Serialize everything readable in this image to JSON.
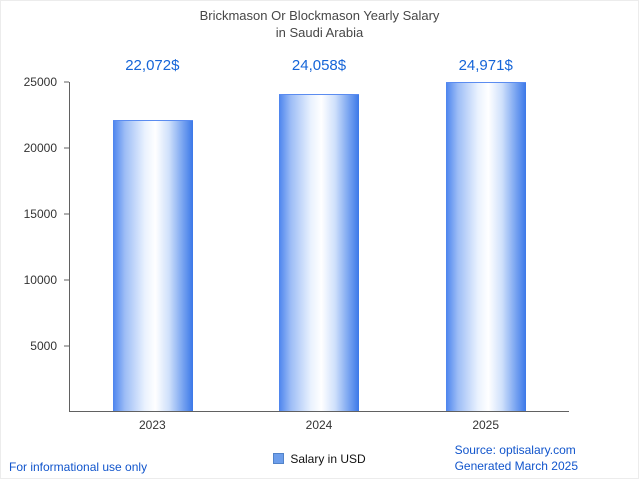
{
  "title": {
    "line1": "Brickmason Or Blockmason Yearly Salary",
    "line2": "in Saudi Arabia"
  },
  "chart_data": {
    "type": "bar",
    "title": "Brickmason Or Blockmason Yearly Salary in Saudi Arabia",
    "categories": [
      "2023",
      "2024",
      "2025"
    ],
    "values": [
      22072,
      24058,
      24971
    ],
    "value_labels": [
      "22,072$",
      "24,058$",
      "24,971$"
    ],
    "series_name": "Salary in USD",
    "xlabel": "",
    "ylabel": "",
    "ylim": [
      0,
      25000
    ],
    "yticks": [
      5000,
      10000,
      15000,
      20000,
      25000
    ],
    "grid": false,
    "legend_position": "bottom-center"
  },
  "legend": {
    "label": "Salary in USD"
  },
  "footer": {
    "left": "For informational use only",
    "source": "Source: optisalary.com",
    "generated": "Generated March 2025"
  },
  "colors": {
    "value_label": "#1565d8",
    "footer_link": "#1155cc",
    "bar_edge": "#4C84EE",
    "bar_center": "#FFFFFF",
    "axis": "#616161",
    "title": "#474747",
    "legend_marker": "#6d9eeb"
  }
}
